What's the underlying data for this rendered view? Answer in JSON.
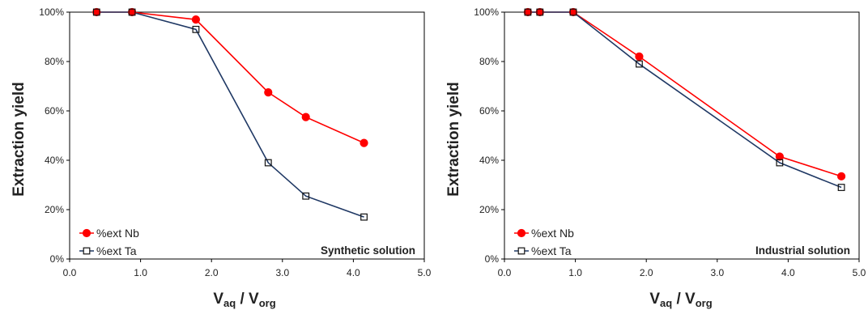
{
  "chart_data": [
    {
      "type": "line",
      "xlabel": "V",
      "xlabel_sub1": "aq",
      "xlabel_mid": " / V",
      "xlabel_sub2": "org",
      "ylabel": "Extraction yield",
      "annotation": "Synthetic solution",
      "xlim": [
        0,
        5
      ],
      "ylim": [
        0,
        100
      ],
      "x_ticks": [
        0,
        1,
        2,
        3,
        4,
        5
      ],
      "x_tick_labels": [
        "0.0",
        "1.0",
        "2.0",
        "3.0",
        "4.0",
        "5.0"
      ],
      "y_ticks": [
        0,
        20,
        40,
        60,
        80,
        100
      ],
      "y_tick_labels": [
        "0%",
        "20%",
        "40%",
        "60%",
        "80%",
        "100%"
      ],
      "legend_position": "bottom-left",
      "series": [
        {
          "name": "%ext Nb",
          "color": "#ff0000",
          "marker": "filled-circle",
          "x": [
            0.38,
            0.88,
            1.78,
            2.8,
            3.33,
            4.15
          ],
          "y": [
            100,
            100,
            97,
            67.5,
            57.5,
            47
          ]
        },
        {
          "name": "%ext Ta",
          "color": "#1f3864",
          "marker": "open-square",
          "x": [
            0.38,
            0.88,
            1.78,
            2.8,
            3.33,
            4.15
          ],
          "y": [
            100,
            100,
            93,
            39,
            25.5,
            17
          ]
        }
      ]
    },
    {
      "type": "line",
      "xlabel": "V",
      "xlabel_sub1": "aq",
      "xlabel_mid": " / V",
      "xlabel_sub2": "org",
      "ylabel": "Extraction yield",
      "annotation": "Industrial solution",
      "xlim": [
        0,
        5
      ],
      "ylim": [
        0,
        100
      ],
      "x_ticks": [
        0,
        1,
        2,
        3,
        4,
        5
      ],
      "x_tick_labels": [
        "0.0",
        "1.0",
        "2.0",
        "3.0",
        "4.0",
        "5.0"
      ],
      "y_ticks": [
        0,
        20,
        40,
        60,
        80,
        100
      ],
      "y_tick_labels": [
        "0%",
        "20%",
        "40%",
        "60%",
        "80%",
        "100%"
      ],
      "legend_position": "bottom-left",
      "series": [
        {
          "name": "%ext Nb",
          "color": "#ff0000",
          "marker": "filled-circle",
          "x": [
            0.33,
            0.5,
            0.97,
            1.9,
            3.88,
            4.75
          ],
          "y": [
            100,
            100,
            100,
            82,
            41.5,
            33.5
          ]
        },
        {
          "name": "%ext Ta",
          "color": "#1f3864",
          "marker": "open-square",
          "x": [
            0.33,
            0.5,
            0.97,
            1.9,
            3.88,
            4.75
          ],
          "y": [
            100,
            100,
            100,
            79,
            39,
            29
          ]
        }
      ]
    }
  ]
}
